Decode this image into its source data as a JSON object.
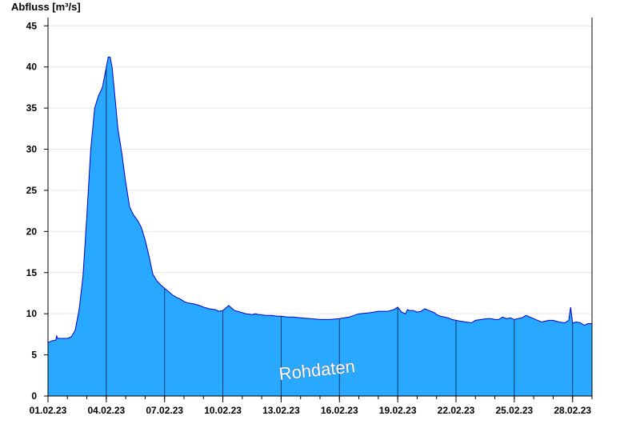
{
  "chart_data": {
    "type": "area",
    "ylabel": "Abfluss [m³/s]",
    "xlabel": "",
    "title": "",
    "x_ticks": [
      "01.02.23",
      "04.02.23",
      "07.02.23",
      "10.02.23",
      "13.02.23",
      "16.02.23",
      "19.02.23",
      "22.02.23",
      "25.02.23",
      "28.02.23"
    ],
    "ylim": [
      0,
      46
    ],
    "yticks": [
      0,
      5,
      10,
      15,
      20,
      25,
      30,
      35,
      40,
      45
    ],
    "grid": "horizontal",
    "annotation": "Rohdaten",
    "fill_color": "#29a8ff",
    "line_color": "#0000cc",
    "series": [
      {
        "x_days": [
          0,
          0.2,
          0.4,
          0.45,
          0.5,
          1.0,
          1.2,
          1.4,
          1.6,
          1.8,
          2.0,
          2.2,
          2.4,
          2.6,
          2.8,
          3.0,
          3.1,
          3.2,
          3.3,
          3.4,
          3.5,
          3.6,
          3.8,
          4.0,
          4.2,
          4.4,
          4.6,
          4.8,
          5.0,
          5.2,
          5.4,
          5.6,
          5.8,
          6.0,
          6.2,
          6.4,
          6.6,
          6.8,
          7.0,
          7.2,
          7.5,
          7.8,
          8.0,
          8.3,
          8.6,
          8.8,
          9.0,
          9.3,
          9.6,
          9.9,
          10.2,
          10.5,
          10.7,
          10.8,
          10.9,
          11.2,
          11.5,
          11.8,
          12.0,
          12.3,
          12.6,
          13.0,
          13.5,
          14.0,
          14.5,
          15.0,
          15.5,
          16.0,
          16.5,
          17.0,
          17.5,
          17.8,
          18.0,
          18.2,
          18.4,
          18.5,
          18.6,
          18.8,
          19.0,
          19.2,
          19.4,
          19.6,
          19.8,
          19.9,
          20.0,
          20.2,
          20.4,
          20.6,
          20.8,
          21.0,
          21.2,
          21.5,
          21.8,
          22.0,
          22.3,
          22.6,
          22.8,
          23.0,
          23.2,
          23.4,
          23.6,
          23.8,
          24.0,
          24.2,
          24.4,
          24.6,
          24.8,
          25.0,
          25.2,
          25.4,
          25.6,
          25.8,
          26.0,
          26.3,
          26.6,
          26.8,
          26.9,
          27.0,
          27.2,
          27.4,
          27.6,
          27.8,
          28.0
        ],
        "values": [
          6.5,
          6.7,
          6.8,
          7.3,
          7.0,
          7.0,
          7.2,
          8.0,
          10.5,
          14.5,
          22.0,
          30.0,
          35.0,
          36.5,
          37.5,
          40.0,
          41.2,
          41.2,
          40.0,
          37.5,
          35.0,
          32.5,
          29.5,
          26.0,
          23.0,
          22.0,
          21.4,
          20.5,
          19.0,
          17.0,
          14.8,
          14.0,
          13.5,
          13.1,
          12.7,
          12.3,
          12.0,
          11.8,
          11.5,
          11.3,
          11.2,
          11.0,
          10.8,
          10.6,
          10.5,
          10.3,
          10.4,
          11.0,
          10.4,
          10.2,
          10.0,
          9.9,
          10.0,
          9.9,
          9.9,
          9.8,
          9.8,
          9.7,
          9.7,
          9.6,
          9.6,
          9.5,
          9.4,
          9.3,
          9.3,
          9.4,
          9.6,
          10.0,
          10.1,
          10.3,
          10.3,
          10.5,
          10.8,
          10.2,
          10.0,
          10.5,
          10.4,
          10.4,
          10.2,
          10.3,
          10.6,
          10.4,
          10.2,
          10.1,
          9.9,
          9.7,
          9.6,
          9.5,
          9.3,
          9.2,
          9.1,
          9.0,
          8.9,
          9.2,
          9.3,
          9.4,
          9.4,
          9.3,
          9.3,
          9.6,
          9.4,
          9.5,
          9.3,
          9.4,
          9.5,
          9.8,
          9.6,
          9.4,
          9.2,
          9.0,
          9.1,
          9.2,
          9.2,
          9.0,
          8.9,
          9.2,
          10.8,
          8.9,
          9.0,
          8.9,
          8.6,
          8.8,
          8.8
        ]
      }
    ]
  }
}
